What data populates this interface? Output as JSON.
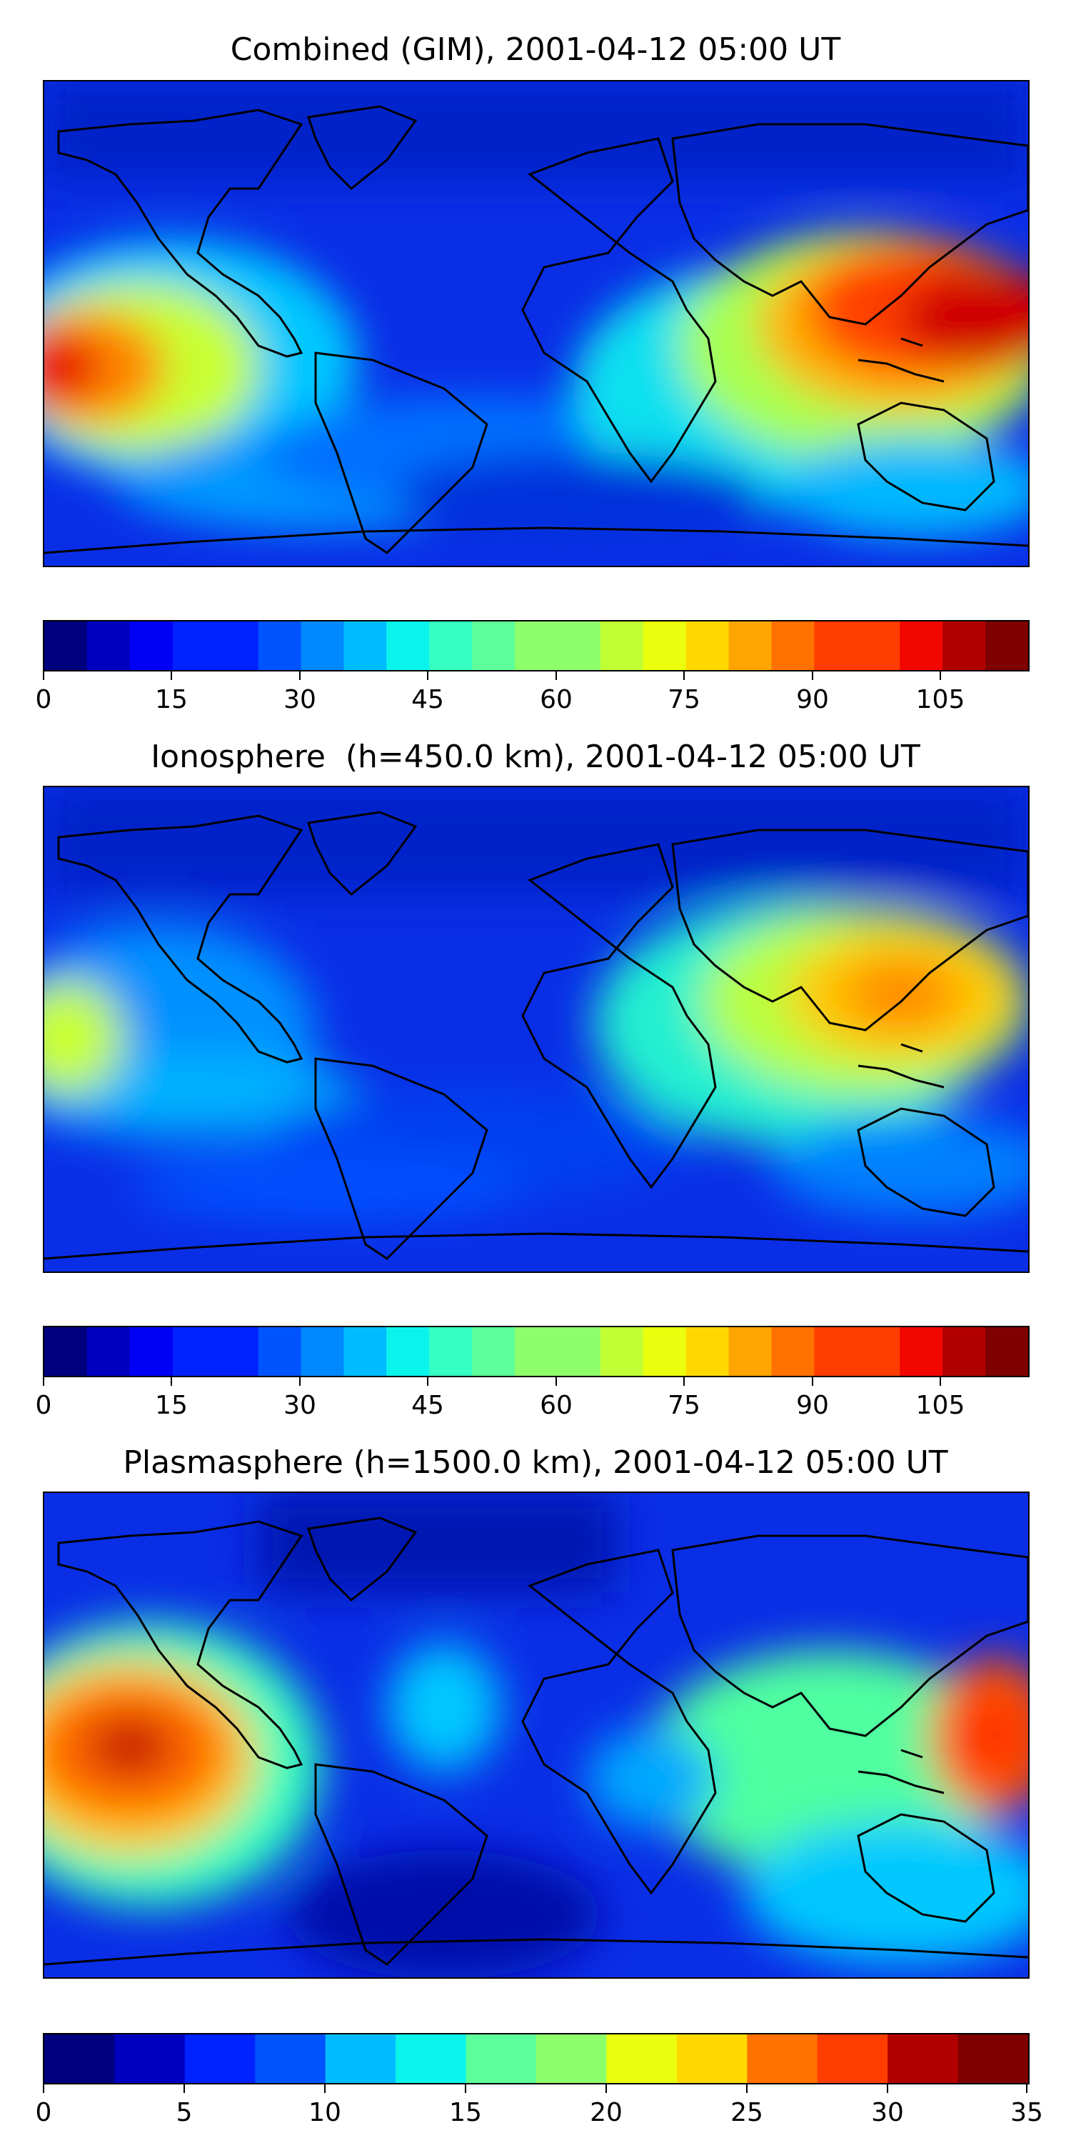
{
  "colormap": [
    "#00007f",
    "#0000bf",
    "#0000f5",
    "#0022ff",
    "#0054ff",
    "#0088ff",
    "#00bcff",
    "#0af4ec",
    "#35ffc1",
    "#5dff9a",
    "#8dff6a",
    "#c1ff35",
    "#eaff0d",
    "#ffd800",
    "#ffa400",
    "#ff7100",
    "#ff3d00",
    "#f10700",
    "#b20000",
    "#7f0000"
  ],
  "panels": [
    {
      "title": "Combined (GIM), 2001-04-12 05:00 UT",
      "colorbar": {
        "vmin": 0,
        "vmax": 115,
        "levels": 23,
        "ticks": [
          0,
          15,
          30,
          45,
          60,
          75,
          90,
          105
        ],
        "tick_labels": [
          "0",
          "15",
          "30",
          "45",
          "60",
          "75",
          "90",
          "105"
        ]
      }
    },
    {
      "title": "Ionosphere  (h=450.0 km), 2001-04-12 05:00 UT",
      "colorbar": {
        "vmin": 0,
        "vmax": 115,
        "levels": 23,
        "ticks": [
          0,
          15,
          30,
          45,
          60,
          75,
          90,
          105
        ],
        "tick_labels": [
          "0",
          "15",
          "30",
          "45",
          "60",
          "75",
          "90",
          "105"
        ]
      }
    },
    {
      "title": "Plasmasphere (h=1500.0 km), 2001-04-12 05:00 UT",
      "colorbar": {
        "vmin": 0,
        "vmax": 35,
        "levels": 14,
        "ticks": [
          0,
          5,
          10,
          15,
          20,
          25,
          30,
          35
        ],
        "tick_labels": [
          "0",
          "5",
          "10",
          "15",
          "20",
          "25",
          "30",
          "35"
        ]
      }
    }
  ]
}
